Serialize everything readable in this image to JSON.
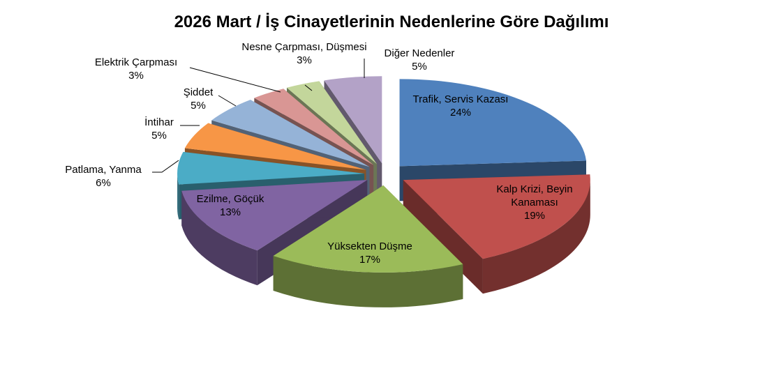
{
  "chart_data": {
    "type": "pie3d",
    "title": "2026 Mart / İş Cinayetlerinin Nedenlerine Göre Dağılımı",
    "categories": [
      "Trafik, Servis Kazası",
      "Kalp Krizi, Beyin Kanaması",
      "Yüksekten Düşme",
      "Ezilme, Göçük",
      "Patlama, Yanma",
      "İntihar",
      "Şiddet",
      "Elektrik Çarpması",
      "Nesne Çarpması, Düşmesi",
      "Diğer Nedenler"
    ],
    "values": [
      24,
      19,
      17,
      13,
      6,
      5,
      5,
      3,
      3,
      5
    ],
    "value_labels": [
      "24%",
      "19%",
      "17%",
      "13%",
      "6%",
      "5%",
      "5%",
      "3%",
      "3%",
      "5%"
    ],
    "colors": [
      "#4f81bd",
      "#c0504d",
      "#9bbb59",
      "#8064a2",
      "#4bacc6",
      "#f79646",
      "#95b3d7",
      "#d99694",
      "#c3d69b",
      "#b3a2c7"
    ]
  }
}
